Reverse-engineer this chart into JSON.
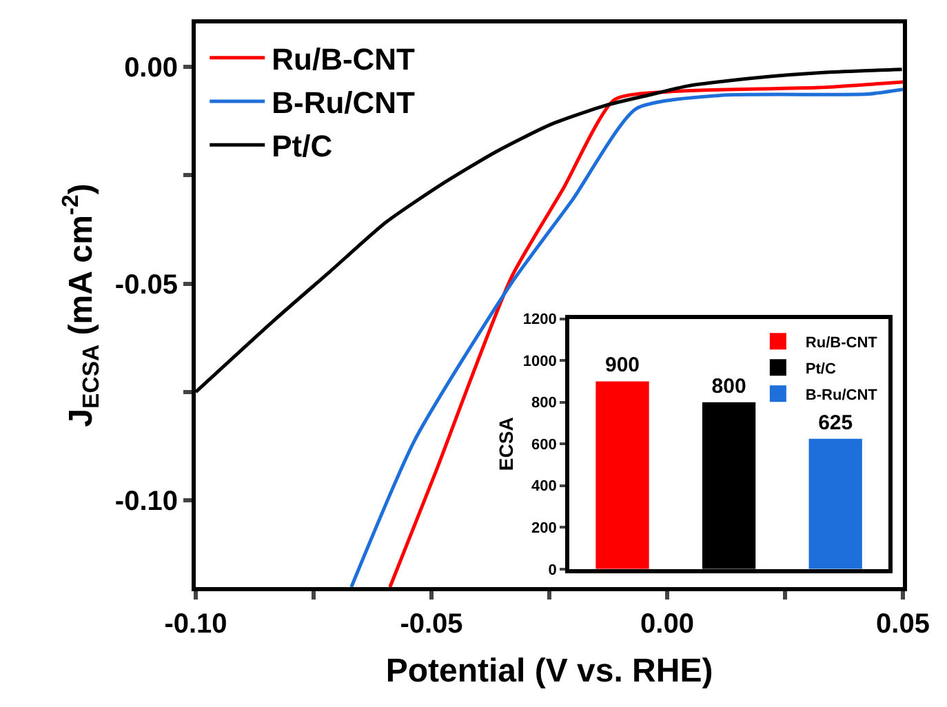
{
  "chart_data": [
    {
      "type": "line",
      "xlabel": "Potential (V vs. RHE)",
      "ylabel": "J$_{ECSA}$ (mA cm$^{-2}$)",
      "xlim": [
        -0.1,
        0.05
      ],
      "ylim": [
        -0.12,
        0.01
      ],
      "xticks": [
        {
          "value": -0.1,
          "label": "-0.10"
        },
        {
          "value": -0.075,
          "label": null
        },
        {
          "value": -0.05,
          "label": "-0.05"
        },
        {
          "value": -0.025,
          "label": null
        },
        {
          "value": 0,
          "label": "0.00"
        },
        {
          "value": 0.025,
          "label": null
        },
        {
          "value": 0.05,
          "label": "0.05"
        }
      ],
      "yticks": [
        {
          "value": 0,
          "label": "0.00"
        },
        {
          "value": -0.025,
          "label": null
        },
        {
          "value": -0.05,
          "label": "-0.05"
        },
        {
          "value": -0.075,
          "label": null
        },
        {
          "value": -0.1,
          "label": "-0.10"
        }
      ],
      "legend": "top left",
      "line_style": "solid",
      "marker": "none",
      "series": [
        {
          "name": "Ru/B-CNT",
          "color": "#ff0000",
          "x": [
            -0.0588,
            -0.0493,
            -0.0331,
            -0.0222,
            -0.0112,
            0.0009,
            0.0322,
            0.05
          ],
          "values": [
            -0.12,
            -0.094,
            -0.0487,
            -0.0284,
            -0.0076,
            -0.0057,
            -0.0048,
            -0.0035
          ]
        },
        {
          "name": "B-Ru/CNT",
          "color": "#1e6fd9",
          "x": [
            -0.067,
            -0.0535,
            -0.0331,
            -0.0201,
            -0.0066,
            0.0112,
            0.0424,
            0.05
          ],
          "values": [
            -0.12,
            -0.086,
            -0.05,
            -0.0307,
            -0.0097,
            -0.0066,
            -0.0063,
            -0.0052
          ]
        },
        {
          "name": "Pt/C",
          "color": "#000000",
          "x": [
            -0.1,
            -0.0831,
            -0.0714,
            -0.0597,
            -0.048,
            -0.0363,
            -0.0247,
            -0.013,
            -0.0042,
            0.0045,
            0.0191,
            0.0337,
            0.0498
          ],
          "values": [
            -0.075,
            -0.0582,
            -0.0471,
            -0.0359,
            -0.0272,
            -0.0196,
            -0.0133,
            -0.0089,
            -0.0066,
            -0.0044,
            -0.0025,
            -0.0013,
            -0.0006
          ]
        }
      ]
    },
    {
      "type": "bar",
      "ylabel": "ECSA",
      "categories": [
        null,
        null,
        null
      ],
      "ylim": [
        0,
        1200
      ],
      "yticks": [
        0,
        200,
        400,
        600,
        800,
        1000,
        1200
      ],
      "tick_labels": "y",
      "legend": "top right",
      "data_labels": true,
      "series": [
        {
          "name": "Ru/B-CNT",
          "color": "#ff0000",
          "values": [
            900,
            null,
            null
          ]
        },
        {
          "name": "Pt/C",
          "color": "#000000",
          "values": [
            null,
            800,
            null
          ]
        },
        {
          "name": "B-Ru/CNT",
          "color": "#1e6fd9",
          "values": [
            null,
            null,
            625
          ]
        }
      ]
    }
  ]
}
